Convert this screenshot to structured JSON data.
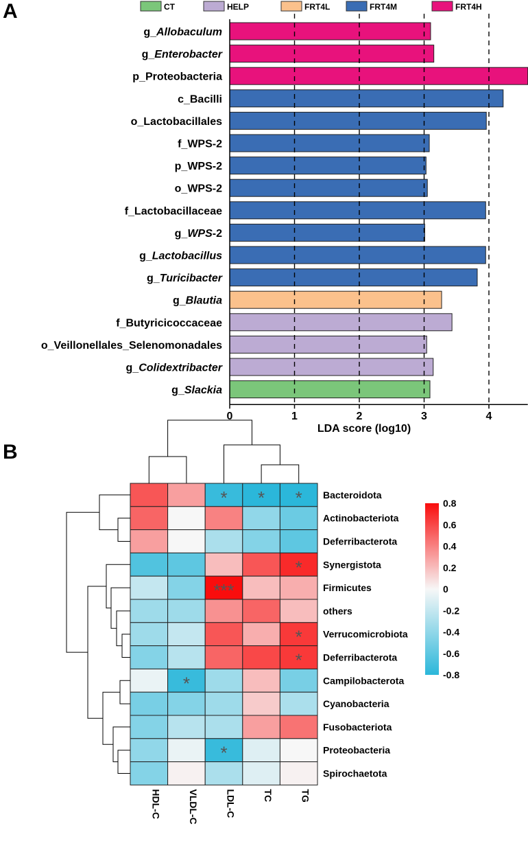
{
  "panels": {
    "a": "A",
    "b": "B"
  },
  "chart_data": [
    {
      "type": "bar",
      "orientation": "horizontal",
      "xlabel": "LDA score (log10)",
      "xlim": [
        0,
        4.6
      ],
      "xticks": [
        "0",
        "1",
        "2",
        "3",
        "4"
      ],
      "gridlines_at": [
        1,
        2,
        3,
        4
      ],
      "legend_position": "top",
      "groups": [
        {
          "name": "CT",
          "color": "#7bc67a"
        },
        {
          "name": "HELP",
          "color": "#bcabd3"
        },
        {
          "name": "FRT4L",
          "color": "#fbc18c"
        },
        {
          "name": "FRT4M",
          "color": "#3a6db4"
        },
        {
          "name": "FRT4H",
          "color": "#e8127c"
        }
      ],
      "bars": [
        {
          "prefix": "g_",
          "name": "Allobaculum",
          "italic": true,
          "value": 3.1,
          "group": "FRT4H"
        },
        {
          "prefix": "g_",
          "name": "Enterobacter",
          "italic": true,
          "value": 3.15,
          "group": "FRT4H"
        },
        {
          "prefix": "p_",
          "name": "Proteobacteria",
          "italic": false,
          "value": 4.6,
          "group": "FRT4H"
        },
        {
          "prefix": "c_",
          "name": "Bacilli",
          "italic": false,
          "value": 4.22,
          "group": "FRT4M"
        },
        {
          "prefix": "o_",
          "name": "Lactobacillales",
          "italic": false,
          "value": 3.96,
          "group": "FRT4M"
        },
        {
          "prefix": "f_",
          "name": "WPS-2",
          "italic": false,
          "value": 3.08,
          "group": "FRT4M"
        },
        {
          "prefix": "p_",
          "name": "WPS-2",
          "italic": false,
          "value": 3.03,
          "group": "FRT4M"
        },
        {
          "prefix": "o_",
          "name": "WPS-2",
          "italic": false,
          "value": 3.05,
          "group": "FRT4M"
        },
        {
          "prefix": "f_",
          "name": "Lactobacillaceae",
          "italic": false,
          "value": 3.95,
          "group": "FRT4M"
        },
        {
          "prefix": "g_",
          "name": "WPS",
          "italic": true,
          "suffix": "-2",
          "value": 3.01,
          "group": "FRT4M"
        },
        {
          "prefix": "g_",
          "name": "Lactobacillus",
          "italic": true,
          "value": 3.95,
          "group": "FRT4M"
        },
        {
          "prefix": "g_",
          "name": "Turicibacter",
          "italic": true,
          "value": 3.82,
          "group": "FRT4M"
        },
        {
          "prefix": "g_",
          "name": "Blautia",
          "italic": true,
          "value": 3.27,
          "group": "FRT4L"
        },
        {
          "prefix": "f_",
          "name": "Butyricicoccaceae",
          "italic": false,
          "value": 3.43,
          "group": "HELP"
        },
        {
          "prefix": "o_",
          "name": "Veillonellales_Selenomonadales",
          "italic": false,
          "value": 3.04,
          "group": "HELP"
        },
        {
          "prefix": "g_",
          "name": "Colidextribacter",
          "italic": true,
          "value": 3.14,
          "group": "HELP"
        },
        {
          "prefix": "g_",
          "name": "Slackia",
          "italic": true,
          "value": 3.09,
          "group": "CT"
        }
      ]
    },
    {
      "type": "heatmap",
      "columns": [
        "HDL-C",
        "VLDL-C",
        "LDL-C",
        "TC",
        "TG"
      ],
      "rows": [
        "Bacteroidota",
        "Actinobacteriota",
        "Deferribacterota",
        "Synergistota",
        "Firmicutes",
        "others",
        "Verrucomicrobiota",
        "Deferribacterota",
        "Campilobacterota",
        "Cyanobacteria",
        "Fusobacteriota",
        "Proteobacteria",
        "Spirochaetota"
      ],
      "values": [
        [
          0.55,
          0.3,
          -0.75,
          -0.8,
          -0.8
        ],
        [
          0.5,
          0.0,
          0.4,
          -0.4,
          -0.55
        ],
        [
          0.3,
          0.0,
          -0.3,
          -0.45,
          -0.6
        ],
        [
          -0.65,
          -0.6,
          0.2,
          0.55,
          0.7
        ],
        [
          -0.2,
          -0.45,
          0.95,
          0.2,
          0.25
        ],
        [
          -0.35,
          -0.35,
          0.35,
          0.5,
          0.2
        ],
        [
          -0.35,
          -0.2,
          0.55,
          0.25,
          0.65
        ],
        [
          -0.45,
          -0.25,
          0.5,
          0.6,
          0.65
        ],
        [
          -0.05,
          -0.75,
          -0.35,
          0.2,
          -0.5
        ],
        [
          -0.5,
          -0.45,
          -0.35,
          0.15,
          -0.3
        ],
        [
          -0.45,
          -0.25,
          -0.3,
          0.3,
          0.45
        ],
        [
          -0.4,
          -0.05,
          -0.75,
          -0.1,
          0.0
        ],
        [
          -0.45,
          0.02,
          -0.3,
          -0.1,
          0.02
        ]
      ],
      "stars": [
        [
          "",
          "",
          "*",
          "*",
          "*"
        ],
        [
          "",
          "",
          "",
          "",
          ""
        ],
        [
          "",
          "",
          "",
          "",
          ""
        ],
        [
          "",
          "",
          "",
          "",
          "*"
        ],
        [
          "",
          "",
          "***",
          "",
          ""
        ],
        [
          "",
          "",
          "",
          "",
          ""
        ],
        [
          "",
          "",
          "",
          "",
          "*"
        ],
        [
          "",
          "",
          "",
          "",
          "*"
        ],
        [
          "",
          "*",
          "",
          "",
          ""
        ],
        [
          "",
          "",
          "",
          "",
          ""
        ],
        [
          "",
          "",
          "",
          "",
          ""
        ],
        [
          "",
          "",
          "*",
          "",
          ""
        ],
        [
          "",
          "",
          "",
          "",
          ""
        ]
      ],
      "colorbar": {
        "range": [
          -0.8,
          0.8
        ],
        "ticks": [
          "0.8",
          "0.6",
          "0.4",
          "0.2",
          "0",
          "-0.2",
          "-0.4",
          "-0.6",
          "-0.8"
        ],
        "ticks_values": [
          0.8,
          0.6,
          0.4,
          0.2,
          0,
          -0.2,
          -0.4,
          -0.6,
          -0.8
        ],
        "low_color": "#2bb7da",
        "mid_color": "#f7f7f7",
        "high_color": "#f90d0d"
      }
    }
  ]
}
